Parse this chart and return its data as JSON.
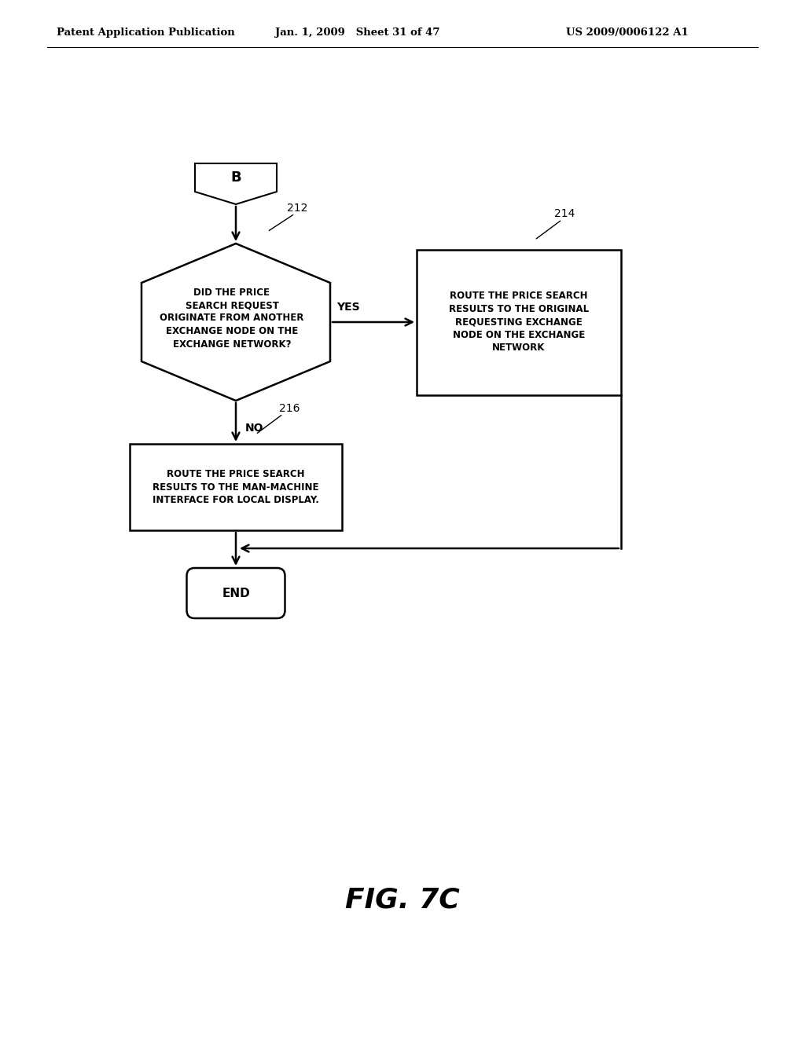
{
  "header_left": "Patent Application Publication",
  "header_mid": "Jan. 1, 2009   Sheet 31 of 47",
  "header_right": "US 2009/0006122 A1",
  "fig_label": "FIG. 7C",
  "background_color": "#ffffff",
  "connector_label": "B",
  "diamond_label": "DID THE PRICE\nSEARCH REQUEST\nORIGINATE FROM ANOTHER\nEXCHANGE NODE ON THE\nEXCHANGE NETWORK?",
  "diamond_ref": "212",
  "box_right_label": "ROUTE THE PRICE SEARCH\nRESULTS TO THE ORIGINAL\nREQUESTING EXCHANGE\nNODE ON THE EXCHANGE\nNETWORK",
  "box_right_ref": "214",
  "box_bottom_label": "ROUTE THE PRICE SEARCH\nRESULTS TO THE MAN-MACHINE\nINTERFACE FOR LOCAL DISPLAY.",
  "box_bottom_ref": "216",
  "end_label": "END",
  "yes_label": "YES",
  "no_label": "NO"
}
